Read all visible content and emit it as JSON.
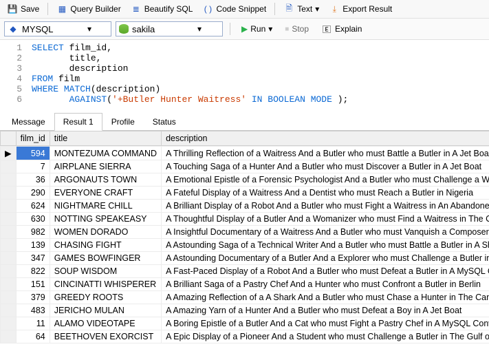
{
  "toolbar": {
    "save": "Save",
    "queryBuilder": "Query Builder",
    "beautify": "Beautify SQL",
    "snippet": "Code Snippet",
    "text": "Text",
    "export": "Export Result"
  },
  "selectors": {
    "engine": "MYSQL",
    "database": "sakila",
    "run": "Run",
    "stop": "Stop",
    "explain": "Explain"
  },
  "sql": {
    "l1": {
      "n": "1",
      "kw": "SELECT",
      "rest": " film_id,"
    },
    "l2": {
      "n": "2",
      "rest": "       title,"
    },
    "l3": {
      "n": "3",
      "rest": "       description"
    },
    "l4": {
      "n": "4",
      "kw": "FROM",
      "rest": " film"
    },
    "l5": {
      "n": "5",
      "kw1": "WHERE",
      "kw2": "MATCH",
      "rest": "(description)"
    },
    "l6": {
      "n": "6",
      "kw1": "AGAINST",
      "str": "'+Butler Hunter Waitress'",
      "kw2": " IN BOOLEAN MODE",
      "rest": " );"
    }
  },
  "tabs": {
    "message": "Message",
    "result": "Result 1",
    "profile": "Profile",
    "status": "Status"
  },
  "grid": {
    "h_id": "film_id",
    "h_title": "title",
    "h_desc": "description",
    "rows": [
      {
        "id": "594",
        "title": "MONTEZUMA COMMAND",
        "desc": "A Thrilling Reflection of a Waitress And a Butler who must Battle a Butler in A Jet Boat"
      },
      {
        "id": "7",
        "title": "AIRPLANE SIERRA",
        "desc": "A Touching Saga of a Hunter And a Butler who must Discover a Butler in A Jet Boat"
      },
      {
        "id": "36",
        "title": "ARGONAUTS TOWN",
        "desc": "A Emotional Epistle of a Forensic Psychologist And a Butler who must Challenge a Waitress"
      },
      {
        "id": "290",
        "title": "EVERYONE CRAFT",
        "desc": "A Fateful Display of a Waitress And a Dentist who must Reach a Butler in Nigeria"
      },
      {
        "id": "624",
        "title": "NIGHTMARE CHILL",
        "desc": "A Brilliant Display of a Robot And a Butler who must Fight a Waitress in An Abandoned Min"
      },
      {
        "id": "630",
        "title": "NOTTING SPEAKEASY",
        "desc": "A Thoughtful Display of a Butler And a Womanizer who must Find a Waitress in The Canadi"
      },
      {
        "id": "982",
        "title": "WOMEN DORADO",
        "desc": "A Insightful Documentary of a Waitress And a Butler who must Vanquish a Composer in Au"
      },
      {
        "id": "139",
        "title": "CHASING FIGHT",
        "desc": "A Astounding Saga of a Technical Writer And a Butler who must Battle a Butler in A Shark T"
      },
      {
        "id": "347",
        "title": "GAMES BOWFINGER",
        "desc": "A Astounding Documentary of a Butler And a Explorer who must Challenge a Butler in A M"
      },
      {
        "id": "822",
        "title": "SOUP WISDOM",
        "desc": "A Fast-Paced Display of a Robot And a Butler who must Defeat a Butler in A MySQL Conver"
      },
      {
        "id": "151",
        "title": "CINCINATTI WHISPERER",
        "desc": "A Brilliant Saga of a Pastry Chef And a Hunter who must Confront a Butler in Berlin"
      },
      {
        "id": "379",
        "title": "GREEDY ROOTS",
        "desc": "A Amazing Reflection of a A Shark And a Butler who must Chase a Hunter in The Canadian"
      },
      {
        "id": "483",
        "title": "JERICHO MULAN",
        "desc": "A Amazing Yarn of a Hunter And a Butler who must Defeat a Boy in A Jet Boat"
      },
      {
        "id": "11",
        "title": "ALAMO VIDEOTAPE",
        "desc": "A Boring Epistle of a Butler And a Cat who must Fight a Pastry Chef in A MySQL Convention"
      },
      {
        "id": "64",
        "title": "BEETHOVEN EXORCIST",
        "desc": "A Epic Display of a Pioneer And a Student who must Challenge a Butler in The Gulf of Mexic"
      }
    ]
  }
}
